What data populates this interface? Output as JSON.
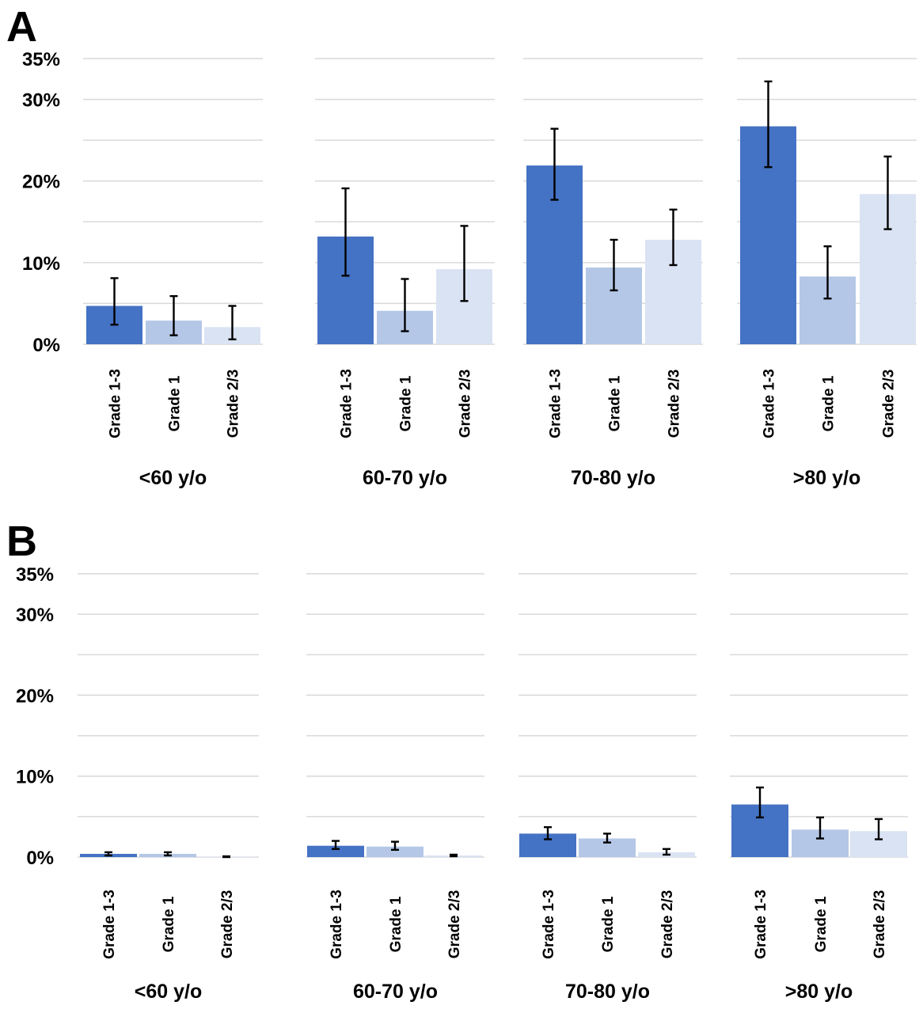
{
  "chart_data": [
    {
      "panel": "A",
      "type": "bar",
      "ylim": [
        0,
        35
      ],
      "yticks": [
        {
          "value": 0,
          "label": "0%"
        },
        {
          "value": 10,
          "label": "10%"
        },
        {
          "value": 20,
          "label": "20%"
        },
        {
          "value": 30,
          "label": "30%"
        },
        {
          "value": 35,
          "label": "35%"
        }
      ],
      "grid": true,
      "categories": [
        "Grade 1-3",
        "Grade 1",
        "Grade 2/3"
      ],
      "groups": [
        {
          "label": "<60 y/o",
          "values": [
            4.7,
            2.9,
            2.1
          ],
          "err_low": [
            2.4,
            1.1,
            0.6
          ],
          "err_high": [
            8.1,
            5.9,
            4.7
          ]
        },
        {
          "label": "60-70 y/o",
          "values": [
            13.2,
            4.1,
            9.2
          ],
          "err_low": [
            8.4,
            1.6,
            5.3
          ],
          "err_high": [
            19.1,
            8.0,
            14.5
          ]
        },
        {
          "label": "70-80 y/o",
          "values": [
            21.9,
            9.4,
            12.8
          ],
          "err_low": [
            17.7,
            6.6,
            9.7
          ],
          "err_high": [
            26.4,
            12.8,
            16.5
          ]
        },
        {
          "label": ">80 y/o",
          "values": [
            26.7,
            8.3,
            18.4
          ],
          "err_low": [
            21.7,
            5.6,
            14.1
          ],
          "err_high": [
            32.2,
            12.0,
            23.0
          ]
        }
      ]
    },
    {
      "panel": "B",
      "type": "bar",
      "ylim": [
        0,
        35
      ],
      "yticks": [
        {
          "value": 0,
          "label": "0%"
        },
        {
          "value": 10,
          "label": "10%"
        },
        {
          "value": 20,
          "label": "20%"
        },
        {
          "value": 30,
          "label": "30%"
        },
        {
          "value": 35,
          "label": "35%"
        }
      ],
      "grid": true,
      "categories": [
        "Grade 1-3",
        "Grade 1",
        "Grade 2/3"
      ],
      "groups": [
        {
          "label": "<60 y/o",
          "values": [
            0.4,
            0.4,
            0.05
          ],
          "err_low": [
            0.2,
            0.2,
            0.0
          ],
          "err_high": [
            0.6,
            0.6,
            0.1
          ]
        },
        {
          "label": "60-70 y/o",
          "values": [
            1.4,
            1.3,
            0.2
          ],
          "err_low": [
            1.0,
            0.9,
            0.1
          ],
          "err_high": [
            2.0,
            1.9,
            0.3
          ]
        },
        {
          "label": "70-80 y/o",
          "values": [
            2.9,
            2.3,
            0.6
          ],
          "err_low": [
            2.2,
            1.8,
            0.3
          ],
          "err_high": [
            3.7,
            2.9,
            1.0
          ]
        },
        {
          "label": ">80 y/o",
          "values": [
            6.5,
            3.4,
            3.2
          ],
          "err_low": [
            4.9,
            2.3,
            2.2
          ],
          "err_high": [
            8.6,
            4.9,
            4.7
          ]
        }
      ]
    }
  ],
  "colors": {
    "Grade 1-3": "#4472c4",
    "Grade 1": "#b4c7e7",
    "Grade 2/3": "#dae3f3",
    "grid": "#d9d9d9",
    "error_bar": "#000000"
  }
}
